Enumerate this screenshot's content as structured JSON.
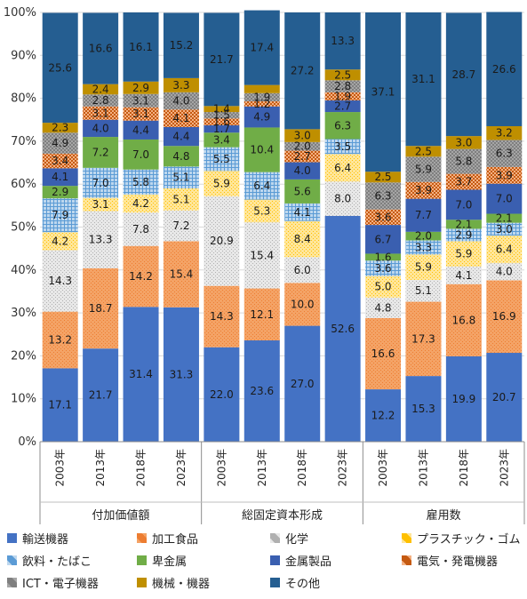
{
  "chart_data": {
    "type": "stacked-bar",
    "percent": true,
    "ylim": [
      0,
      100
    ],
    "yticks": [
      "0%",
      "10%",
      "20%",
      "30%",
      "40%",
      "50%",
      "60%",
      "70%",
      "80%",
      "90%",
      "100%"
    ],
    "groups": [
      {
        "name": "付加価値額",
        "years": [
          "2003年",
          "2013年",
          "2018年",
          "2023年"
        ]
      },
      {
        "name": "総固定資本形成",
        "years": [
          "2003年",
          "2013年",
          "2018年",
          "2023年"
        ]
      },
      {
        "name": "雇用数",
        "years": [
          "2003年",
          "2013年",
          "2018年",
          "2023年"
        ]
      }
    ],
    "series": [
      {
        "name": "輸送機器",
        "color": "#4472c4",
        "values": [
          17.1,
          21.7,
          31.4,
          31.3,
          22.0,
          23.6,
          27.0,
          52.6,
          12.2,
          15.3,
          19.9,
          20.7
        ],
        "labels": [
          "17.1",
          "21.7",
          "31.4",
          "31.3",
          "22.0",
          "23.6",
          "27.0",
          "52.6",
          "12.2",
          "15.3",
          "19.9",
          "20.7"
        ]
      },
      {
        "name": "加工食品",
        "color": "#ed7d31",
        "values": [
          13.2,
          18.7,
          14.2,
          15.4,
          14.3,
          12.1,
          10.0,
          0,
          16.6,
          17.3,
          16.8,
          16.9
        ],
        "labels": [
          "13.2",
          "18.7",
          "14.2",
          "15.4",
          "14.3",
          "12.1",
          "10.0",
          "",
          "16.6",
          "17.3",
          "16.8",
          "16.9"
        ]
      },
      {
        "name": "化学",
        "color": "#d9d9d9",
        "values": [
          14.3,
          13.3,
          7.8,
          7.2,
          20.9,
          15.4,
          6.0,
          8.0,
          4.8,
          5.1,
          4.1,
          4.0
        ],
        "labels": [
          "14.3",
          "13.3",
          "7.8",
          "7.2",
          "20.9",
          "15.4",
          "6.0",
          "8.0",
          "4.8",
          "5.1",
          "4.1",
          "4.0"
        ]
      },
      {
        "name": "プラスチック・ゴム",
        "color": "#ffc000",
        "values": [
          4.2,
          3.1,
          4.2,
          5.1,
          5.9,
          5.3,
          8.4,
          6.4,
          5.0,
          5.9,
          5.9,
          6.4
        ],
        "labels": [
          "4.2",
          "3.1",
          "4.2",
          "5.1",
          "5.9",
          "5.3",
          "8.4",
          "6.4",
          "5.0",
          "5.9",
          "5.9",
          "6.4"
        ]
      },
      {
        "name": "飲料・たばこ",
        "color": "#9dc3e6",
        "values": [
          7.9,
          7.0,
          5.8,
          5.1,
          5.5,
          6.4,
          4.1,
          3.5,
          3.6,
          3.3,
          2.9,
          3.0
        ],
        "labels": [
          "7.9",
          "7.0",
          "5.8",
          "5.1",
          "5.5",
          "6.4",
          "4.1",
          "3.5",
          "3.6",
          "3.3",
          "2.9",
          "3.0"
        ]
      },
      {
        "name": "卑金属",
        "color": "#70ad47",
        "values": [
          2.9,
          7.2,
          7.0,
          4.8,
          3.4,
          10.4,
          5.6,
          6.3,
          1.6,
          2.0,
          2.1,
          2.1
        ],
        "labels": [
          "2.9",
          "7.2",
          "7.0",
          "4.8",
          "3.4",
          "10.4",
          "5.6",
          "6.3",
          "1.6",
          "2.0",
          "2.1",
          "2.1"
        ]
      },
      {
        "name": "金属製品",
        "color": "#3a5fb0",
        "values": [
          4.1,
          4.0,
          4.4,
          4.4,
          1.7,
          4.9,
          4.0,
          2.7,
          6.7,
          7.7,
          7.0,
          7.0
        ],
        "labels": [
          "4.1",
          "4.0",
          "4.4",
          "4.4",
          "1.7",
          "4.9",
          "4.0",
          "2.7",
          "6.7",
          "7.7",
          "7.0",
          "7.0"
        ]
      },
      {
        "name": "電気・発電機器",
        "color": "#c55a11",
        "values": [
          3.4,
          3.1,
          3.1,
          4.1,
          1.6,
          1.2,
          2.7,
          1.9,
          3.6,
          3.9,
          3.7,
          3.9
        ],
        "labels": [
          "3.4",
          "3.1",
          "3.1",
          "4.1",
          "1.6",
          "1.2",
          "2.7",
          "1.9",
          "3.6",
          "3.9",
          "3.7",
          "3.9"
        ]
      },
      {
        "name": "ICT・電子機器",
        "color": "#8c8c8c",
        "values": [
          4.9,
          2.8,
          3.1,
          4.0,
          1.5,
          1.9,
          2.0,
          2.8,
          6.3,
          5.9,
          5.8,
          6.3
        ],
        "labels": [
          "4.9",
          "2.8",
          "3.1",
          "4.0",
          "1.5",
          "1.9",
          "2.0",
          "2.8",
          "6.3",
          "5.9",
          "5.8",
          "6.3"
        ]
      },
      {
        "name": "機械・機器",
        "color": "#bf8f00",
        "values": [
          2.3,
          2.4,
          2.9,
          3.3,
          1.4,
          1.9,
          3.0,
          2.5,
          2.5,
          2.5,
          3.0,
          3.2
        ],
        "labels": [
          "2.3",
          "2.4",
          "2.9",
          "3.3",
          "1.4",
          "",
          "3.0",
          "2.5",
          "2.5",
          "2.5",
          "3.0",
          "3.2"
        ]
      },
      {
        "name": "その他",
        "color": "#255e91",
        "values": [
          25.6,
          16.6,
          16.1,
          15.2,
          21.7,
          17.4,
          27.2,
          13.3,
          37.1,
          31.1,
          28.7,
          26.6
        ],
        "labels": [
          "25.6",
          "16.6",
          "16.1",
          "15.2",
          "21.7",
          "17.4",
          "27.2",
          "13.3",
          "37.1",
          "31.1",
          "28.7",
          "26.6"
        ]
      }
    ],
    "legend_position": "bottom"
  }
}
